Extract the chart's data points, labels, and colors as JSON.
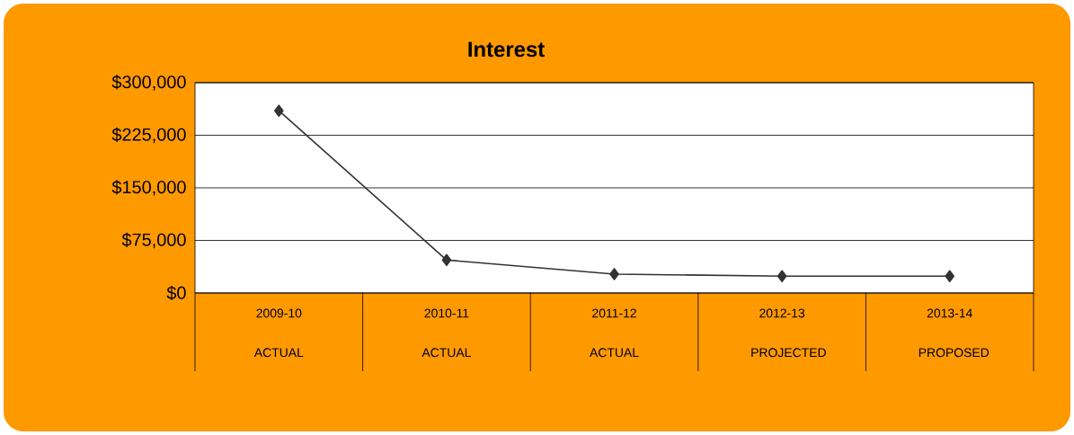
{
  "chart_data": {
    "type": "line",
    "title": "Interest",
    "categories": [
      "2009-10 ACTUAL",
      "2010-11 ACTUAL",
      "2011-12 ACTUAL",
      "2012-13 PROJECTED",
      "2013-14 PROPOSED"
    ],
    "series": [
      {
        "color": "#333333",
        "values": [
          260000,
          47000,
          27000,
          24000,
          24000
        ]
      }
    ],
    "ylim": [
      0,
      300000
    ],
    "yticks": [
      {
        "value": 0,
        "label": "$0"
      },
      {
        "value": 75000,
        "label": "$75,000"
      },
      {
        "value": 150000,
        "label": "$150,000"
      },
      {
        "value": 225000,
        "label": "$225,000"
      },
      {
        "value": 300000,
        "label": "$300,000"
      }
    ],
    "grid": "y",
    "marker": "diamond",
    "line_style": "solid"
  }
}
